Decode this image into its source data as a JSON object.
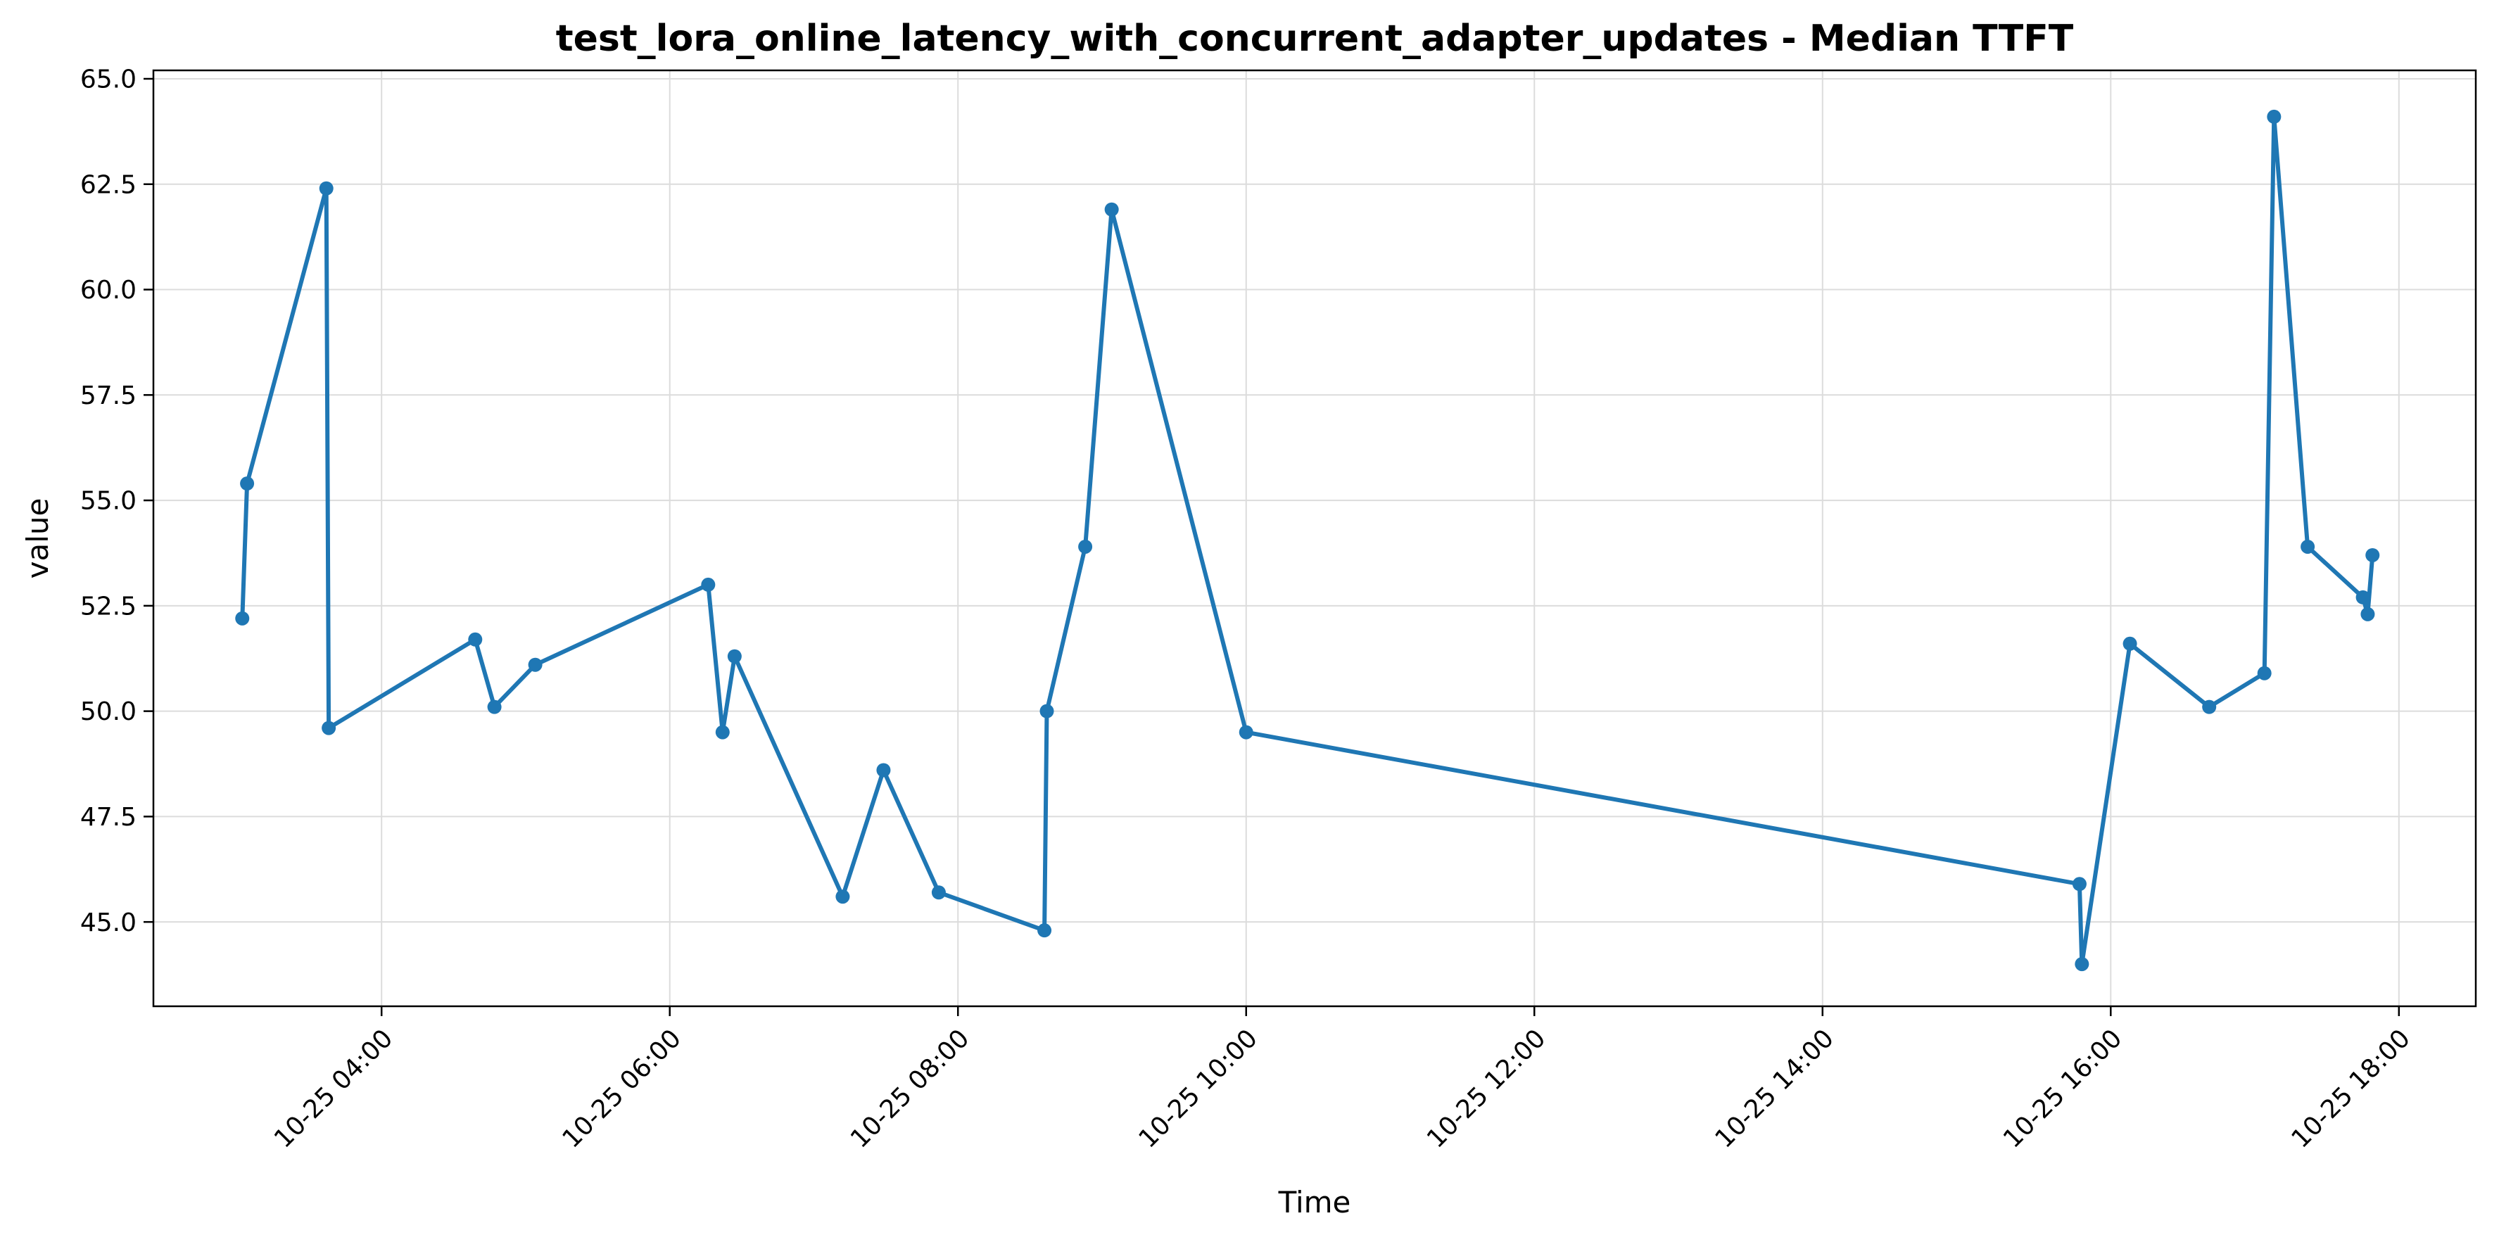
{
  "chart_data": {
    "type": "line",
    "title": "test_lora_online_latency_with_concurrent_adapter_updates - Median TTFT",
    "xlabel": "Time",
    "ylabel": "value",
    "xlim": [
      "2025-10-25T02:25",
      "2025-10-25T18:32"
    ],
    "ylim": [
      43.0,
      65.2
    ],
    "grid": true,
    "x_ticks": [
      {
        "value": "2025-10-25T04:00",
        "label": "10-25 04:00"
      },
      {
        "value": "2025-10-25T06:00",
        "label": "10-25 06:00"
      },
      {
        "value": "2025-10-25T08:00",
        "label": "10-25 08:00"
      },
      {
        "value": "2025-10-25T10:00",
        "label": "10-25 10:00"
      },
      {
        "value": "2025-10-25T12:00",
        "label": "10-25 12:00"
      },
      {
        "value": "2025-10-25T14:00",
        "label": "10-25 14:00"
      },
      {
        "value": "2025-10-25T16:00",
        "label": "10-25 16:00"
      },
      {
        "value": "2025-10-25T18:00",
        "label": "10-25 18:00"
      }
    ],
    "y_ticks": [
      {
        "value": 45.0,
        "label": "45.0"
      },
      {
        "value": 47.5,
        "label": "47.5"
      },
      {
        "value": 50.0,
        "label": "50.0"
      },
      {
        "value": 52.5,
        "label": "52.5"
      },
      {
        "value": 55.0,
        "label": "55.0"
      },
      {
        "value": 57.5,
        "label": "57.5"
      },
      {
        "value": 60.0,
        "label": "60.0"
      },
      {
        "value": 62.5,
        "label": "62.5"
      },
      {
        "value": 65.0,
        "label": "65.0"
      }
    ],
    "series": [
      {
        "color": "#1f77b4",
        "points": [
          {
            "x": "2025-10-25T03:02",
            "y": 52.2
          },
          {
            "x": "2025-10-25T03:04",
            "y": 55.4
          },
          {
            "x": "2025-10-25T03:37",
            "y": 62.4
          },
          {
            "x": "2025-10-25T03:38",
            "y": 49.6
          },
          {
            "x": "2025-10-25T04:39",
            "y": 51.7
          },
          {
            "x": "2025-10-25T04:47",
            "y": 50.1
          },
          {
            "x": "2025-10-25T05:04",
            "y": 51.1
          },
          {
            "x": "2025-10-25T06:16",
            "y": 53.0
          },
          {
            "x": "2025-10-25T06:22",
            "y": 49.5
          },
          {
            "x": "2025-10-25T06:27",
            "y": 51.3
          },
          {
            "x": "2025-10-25T07:12",
            "y": 45.6
          },
          {
            "x": "2025-10-25T07:29",
            "y": 48.6
          },
          {
            "x": "2025-10-25T07:52",
            "y": 45.7
          },
          {
            "x": "2025-10-25T08:36",
            "y": 44.8
          },
          {
            "x": "2025-10-25T08:37",
            "y": 50.0
          },
          {
            "x": "2025-10-25T08:53",
            "y": 53.9
          },
          {
            "x": "2025-10-25T09:04",
            "y": 61.9
          },
          {
            "x": "2025-10-25T10:00",
            "y": 49.5
          },
          {
            "x": "2025-10-25T15:47",
            "y": 45.9
          },
          {
            "x": "2025-10-25T15:48",
            "y": 44.0
          },
          {
            "x": "2025-10-25T16:08",
            "y": 51.6
          },
          {
            "x": "2025-10-25T16:41",
            "y": 50.1
          },
          {
            "x": "2025-10-25T17:04",
            "y": 50.9
          },
          {
            "x": "2025-10-25T17:08",
            "y": 64.1
          },
          {
            "x": "2025-10-25T17:22",
            "y": 53.9
          },
          {
            "x": "2025-10-25T17:45",
            "y": 52.7
          },
          {
            "x": "2025-10-25T17:47",
            "y": 52.3
          },
          {
            "x": "2025-10-25T17:49",
            "y": 53.7
          }
        ]
      }
    ]
  }
}
